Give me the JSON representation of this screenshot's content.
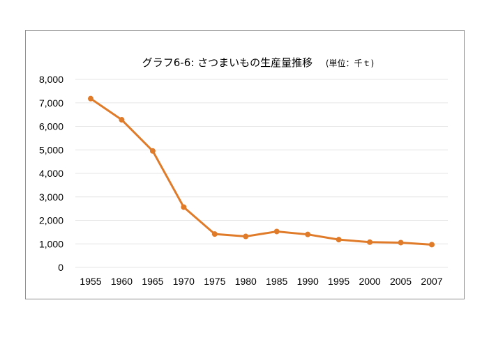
{
  "chart_data": {
    "type": "line",
    "title": "グラフ6-6: さつまいもの生産量推移",
    "unit_label": "(単位：千ｔ)",
    "categories": [
      "1955",
      "1960",
      "1965",
      "1970",
      "1975",
      "1980",
      "1985",
      "1990",
      "1995",
      "2000",
      "2005",
      "2007"
    ],
    "values": [
      7180,
      6280,
      4955,
      2564,
      1418,
      1317,
      1527,
      1402,
      1181,
      1073,
      1053,
      968
    ],
    "ylim": [
      0,
      8000
    ],
    "yticks": [
      "0",
      "1,000",
      "2,000",
      "3,000",
      "4,000",
      "5,000",
      "6,000",
      "7,000",
      "8,000"
    ],
    "xlabel": "",
    "ylabel": "",
    "grid": true,
    "legend": "none",
    "line_color": "#e07b2a",
    "grid_color": "#e6e6e6"
  }
}
